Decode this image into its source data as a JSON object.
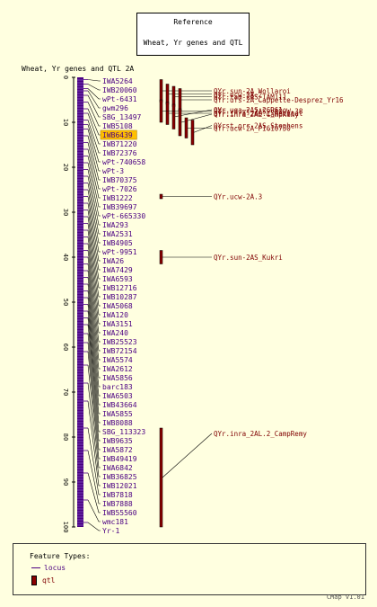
{
  "reference": {
    "heading": "Reference",
    "subtitle": "Wheat, Yr genes and QTL"
  },
  "map_title": "Wheat, Yr genes and QTL 2A",
  "axis_ticks": [
    0,
    10,
    20,
    30,
    40,
    50,
    60,
    70,
    80,
    90,
    100
  ],
  "highlight_marker": "IWB6439",
  "colors": {
    "background": "#ffffe0",
    "chromosome": "#4b0082",
    "qtl": "#8b0000",
    "qtl_label": "#800000",
    "highlight": "#ffc000"
  },
  "markers": [
    {
      "name": "IWA5264",
      "pos": 0.5
    },
    {
      "name": "IWB20060",
      "pos": 1.5
    },
    {
      "name": "wPt-6431",
      "pos": 2.5
    },
    {
      "name": "gwm296",
      "pos": 3.0
    },
    {
      "name": "SBG_13497",
      "pos": 4.0
    },
    {
      "name": "IWB5108",
      "pos": 5.5
    },
    {
      "name": "IWB6439",
      "pos": 7.0
    },
    {
      "name": "IWB71220",
      "pos": 8.0
    },
    {
      "name": "IWB72376",
      "pos": 9.5
    },
    {
      "name": "wPt-740658",
      "pos": 10.5
    },
    {
      "name": "wPt-3",
      "pos": 11.5
    },
    {
      "name": "IWB70375",
      "pos": 13.0
    },
    {
      "name": "wPt-7026",
      "pos": 14.5
    },
    {
      "name": "IWB1222",
      "pos": 16.0
    },
    {
      "name": "IWB39697",
      "pos": 17.5
    },
    {
      "name": "wPt-665330",
      "pos": 19.0
    },
    {
      "name": "IWA293",
      "pos": 20.5
    },
    {
      "name": "IWA2531",
      "pos": 22.0
    },
    {
      "name": "IWB4905",
      "pos": 23.5
    },
    {
      "name": "wPt-9951",
      "pos": 25.0
    },
    {
      "name": "IWA26",
      "pos": 26.5
    },
    {
      "name": "IWA7429",
      "pos": 28.0
    },
    {
      "name": "IWA6593",
      "pos": 29.5
    },
    {
      "name": "IWB12716",
      "pos": 31.0
    },
    {
      "name": "IWB10287",
      "pos": 32.5
    },
    {
      "name": "IWA5068",
      "pos": 34.0
    },
    {
      "name": "IWA120",
      "pos": 35.5
    },
    {
      "name": "IWA3151",
      "pos": 37.0
    },
    {
      "name": "IWA240",
      "pos": 38.5
    },
    {
      "name": "IWB25523",
      "pos": 40.0
    },
    {
      "name": "IWB72154",
      "pos": 41.5
    },
    {
      "name": "IWA5574",
      "pos": 43.0
    },
    {
      "name": "IWA2612",
      "pos": 44.5
    },
    {
      "name": "IWA5856",
      "pos": 46.0
    },
    {
      "name": "barc183",
      "pos": 47.5
    },
    {
      "name": "IWA6503",
      "pos": 49.0
    },
    {
      "name": "IWB43664",
      "pos": 50.5
    },
    {
      "name": "IWA5855",
      "pos": 52.0
    },
    {
      "name": "IWB8088",
      "pos": 53.5
    },
    {
      "name": "SBG_113323",
      "pos": 55.0
    },
    {
      "name": "IWB9635",
      "pos": 57.0
    },
    {
      "name": "IWA5872",
      "pos": 59.0
    },
    {
      "name": "IWB49419",
      "pos": 61.0
    },
    {
      "name": "IWA6842",
      "pos": 64.0
    },
    {
      "name": "IWB36825",
      "pos": 68.0
    },
    {
      "name": "IWB12021",
      "pos": 72.0
    },
    {
      "name": "IWB7818",
      "pos": 78.0
    },
    {
      "name": "IWB7888",
      "pos": 83.0
    },
    {
      "name": "IWB55560",
      "pos": 88.0
    },
    {
      "name": "wmc181",
      "pos": 94.0
    },
    {
      "name": "Yr-1",
      "pos": 99.0
    }
  ],
  "qtls": [
    {
      "name": "QYr.sun-2A_Wollaroi",
      "start": 0.5,
      "end": 5.5,
      "col": 0
    },
    {
      "name": "QYr.ucw-2A.2",
      "start": 1.5,
      "end": 6.0,
      "col": 1
    },
    {
      "name": "QYr.tam-2AS_TAM111",
      "start": 2.0,
      "end": 6.5,
      "col": 2
    },
    {
      "name": "QYr.ufs-2A_Cappelle-Desprez_Yr16",
      "start": 2.5,
      "end": 7.5,
      "col": 3
    },
    {
      "name": "QYr.inra_2AS.1_Recital",
      "start": 5.5,
      "end": 10.5,
      "col": 1
    },
    {
      "name": "QYr.uga-2AS_26R61",
      "start": 6.0,
      "end": 11.5,
      "col": 2
    },
    {
      "name": "QYr.va.vt-2AS_VA00W-38",
      "start": 5.0,
      "end": 10.0,
      "col": 0
    },
    {
      "name": "QYr.inra-2AL_CampRemy",
      "start": 7.0,
      "end": 13.0,
      "col": 3
    },
    {
      "name": "QYr.ucw-2A_PI610750",
      "start": 9.0,
      "end": 13.5,
      "col": 4
    },
    {
      "name": "QYrst.orr-2AS_Stephens",
      "start": 9.5,
      "end": 15.0,
      "col": 5
    },
    {
      "name": "QYr.ucw-2A.3",
      "start": 26.0,
      "end": 27.0,
      "col": 0
    },
    {
      "name": "QYr.sun-2AS_Kukri",
      "start": 38.5,
      "end": 41.5,
      "col": 0
    },
    {
      "name": "QYr.inra_2AL.2_CampRemy",
      "start": 78.0,
      "end": 100.0,
      "col": 0
    }
  ],
  "legend": {
    "heading": "Feature Types:",
    "locus": "locus",
    "qtl": "qtl"
  },
  "version": "CMap v1.01"
}
